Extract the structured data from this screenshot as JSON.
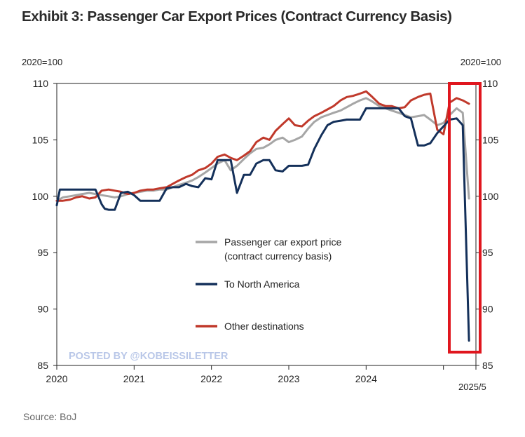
{
  "title": "Exhibit 3: Passenger Car Export Prices (Contract Currency Basis)",
  "source": "Source: BoJ",
  "watermark": "POSTED BY @KOBEISSILETTER",
  "colors": {
    "export_price": "#a6a6a6",
    "north_america": "#14305a",
    "other": "#c0392b",
    "highlight": "#e0161e"
  },
  "chart_data": {
    "type": "line",
    "unit_left": "2020=100",
    "unit_right": "2020=100",
    "ylim": [
      85,
      110
    ],
    "yticks": [
      85,
      90,
      95,
      100,
      105,
      110
    ],
    "xlim": [
      2020.0,
      2025.42
    ],
    "xticks": [
      {
        "value": 2020,
        "label": "2020"
      },
      {
        "value": 2021,
        "label": "2021"
      },
      {
        "value": 2022,
        "label": "2022"
      },
      {
        "value": 2023,
        "label": "2023"
      },
      {
        "value": 2024,
        "label": "2024"
      }
    ],
    "end_label": "2025/5",
    "legend": [
      "Passenger car export price (contract currency basis)",
      "To North America",
      "Other destinations"
    ],
    "legend_placement": "lower-center",
    "highlight_box": {
      "from": "2025/1",
      "to": "2025/5"
    },
    "series": [
      {
        "name": "Passenger car export price (contract currency basis)",
        "x": [
          2020.0,
          2020.08,
          2020.17,
          2020.25,
          2020.33,
          2020.42,
          2020.5,
          2020.58,
          2020.67,
          2020.75,
          2020.83,
          2020.92,
          2021.0,
          2021.08,
          2021.17,
          2021.25,
          2021.33,
          2021.42,
          2021.5,
          2021.58,
          2021.67,
          2021.75,
          2021.83,
          2021.92,
          2022.0,
          2022.08,
          2022.17,
          2022.25,
          2022.33,
          2022.42,
          2022.5,
          2022.58,
          2022.67,
          2022.75,
          2022.83,
          2022.92,
          2023.0,
          2023.08,
          2023.17,
          2023.25,
          2023.33,
          2023.42,
          2023.5,
          2023.58,
          2023.67,
          2023.75,
          2023.83,
          2023.92,
          2024.0,
          2024.08,
          2024.17,
          2024.25,
          2024.33,
          2024.42,
          2024.5,
          2024.58,
          2024.67,
          2024.75,
          2024.83,
          2024.92,
          2025.0,
          2025.08,
          2025.17,
          2025.25,
          2025.33
        ],
        "y": [
          99.6,
          99.9,
          100.0,
          100.1,
          100.2,
          100.3,
          100.2,
          100.1,
          100.0,
          99.9,
          100.0,
          100.2,
          100.3,
          100.4,
          100.5,
          100.5,
          100.6,
          100.6,
          100.8,
          101.0,
          101.2,
          101.4,
          101.7,
          102.1,
          102.5,
          102.9,
          103.2,
          102.3,
          102.7,
          103.3,
          103.8,
          104.2,
          104.3,
          104.6,
          105.0,
          105.2,
          104.8,
          105.0,
          105.3,
          106.0,
          106.6,
          107.0,
          107.2,
          107.4,
          107.6,
          107.9,
          108.2,
          108.5,
          108.7,
          108.4,
          108.0,
          107.8,
          107.6,
          107.4,
          107.2,
          107.0,
          107.1,
          107.2,
          106.8,
          106.3,
          106.5,
          107.2,
          107.8,
          107.4,
          99.8
        ]
      },
      {
        "name": "To North America",
        "x": [
          2020.0,
          2020.04,
          2020.08,
          2020.17,
          2020.25,
          2020.33,
          2020.42,
          2020.5,
          2020.58,
          2020.62,
          2020.67,
          2020.75,
          2020.83,
          2020.92,
          2021.0,
          2021.08,
          2021.17,
          2021.25,
          2021.33,
          2021.42,
          2021.5,
          2021.58,
          2021.67,
          2021.75,
          2021.83,
          2021.92,
          2022.0,
          2022.08,
          2022.17,
          2022.25,
          2022.33,
          2022.42,
          2022.5,
          2022.58,
          2022.67,
          2022.75,
          2022.83,
          2022.92,
          2023.0,
          2023.08,
          2023.17,
          2023.25,
          2023.33,
          2023.42,
          2023.5,
          2023.58,
          2023.67,
          2023.75,
          2023.83,
          2023.92,
          2024.0,
          2024.08,
          2024.17,
          2024.25,
          2024.33,
          2024.42,
          2024.5,
          2024.58,
          2024.67,
          2024.75,
          2024.83,
          2024.92,
          2025.0,
          2025.08,
          2025.17,
          2025.25,
          2025.33
        ],
        "y": [
          99.2,
          100.6,
          100.6,
          100.6,
          100.6,
          100.6,
          100.6,
          100.6,
          99.3,
          98.9,
          98.8,
          98.8,
          100.3,
          100.4,
          100.1,
          99.6,
          99.6,
          99.6,
          99.6,
          100.7,
          100.8,
          100.8,
          101.1,
          100.9,
          100.8,
          101.6,
          101.5,
          103.2,
          103.2,
          103.2,
          100.3,
          101.9,
          101.9,
          102.9,
          103.2,
          103.2,
          102.3,
          102.2,
          102.7,
          102.7,
          102.7,
          102.8,
          104.2,
          105.4,
          106.3,
          106.6,
          106.7,
          106.8,
          106.8,
          106.8,
          107.8,
          107.8,
          107.8,
          107.8,
          107.8,
          107.8,
          107.1,
          106.9,
          104.5,
          104.5,
          104.7,
          105.6,
          106.2,
          106.8,
          106.9,
          106.3,
          87.2
        ]
      },
      {
        "name": "Other destinations",
        "x": [
          2020.0,
          2020.08,
          2020.17,
          2020.25,
          2020.33,
          2020.42,
          2020.5,
          2020.58,
          2020.67,
          2020.75,
          2020.83,
          2020.92,
          2021.0,
          2021.08,
          2021.17,
          2021.25,
          2021.33,
          2021.42,
          2021.5,
          2021.58,
          2021.67,
          2021.75,
          2021.83,
          2021.92,
          2022.0,
          2022.08,
          2022.17,
          2022.25,
          2022.33,
          2022.42,
          2022.5,
          2022.58,
          2022.67,
          2022.75,
          2022.83,
          2022.92,
          2023.0,
          2023.08,
          2023.17,
          2023.25,
          2023.33,
          2023.42,
          2023.5,
          2023.58,
          2023.67,
          2023.75,
          2023.83,
          2023.92,
          2024.0,
          2024.08,
          2024.17,
          2024.25,
          2024.33,
          2024.42,
          2024.5,
          2024.58,
          2024.67,
          2024.75,
          2024.83,
          2024.92,
          2025.0,
          2025.08,
          2025.17,
          2025.25,
          2025.33
        ],
        "y": [
          99.6,
          99.6,
          99.7,
          99.9,
          100.0,
          99.8,
          99.9,
          100.5,
          100.6,
          100.5,
          100.4,
          100.2,
          100.3,
          100.5,
          100.6,
          100.6,
          100.7,
          100.8,
          101.1,
          101.4,
          101.7,
          101.9,
          102.3,
          102.5,
          102.9,
          103.5,
          103.7,
          103.4,
          103.2,
          103.6,
          104.0,
          104.8,
          105.2,
          105.0,
          105.8,
          106.4,
          106.9,
          106.3,
          106.2,
          106.7,
          107.1,
          107.4,
          107.7,
          108.0,
          108.5,
          108.8,
          108.9,
          109.1,
          109.3,
          108.8,
          108.2,
          108.0,
          108.0,
          107.8,
          107.9,
          108.5,
          108.8,
          109.0,
          109.1,
          105.9,
          105.5,
          108.3,
          108.7,
          108.5,
          108.2
        ]
      }
    ]
  }
}
